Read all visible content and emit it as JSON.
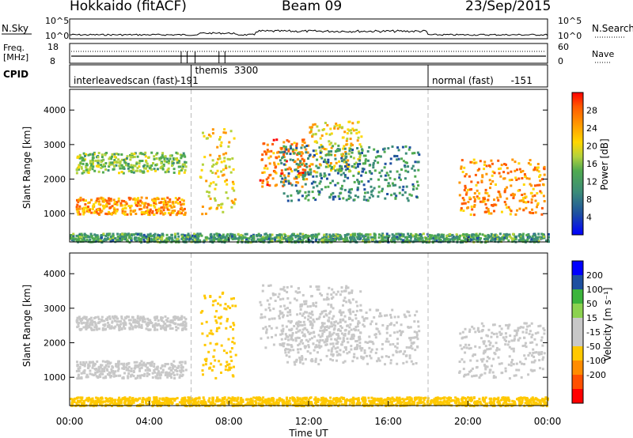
{
  "header": {
    "radar": "Hokkaido (fitACF)",
    "beam": "Beam 09",
    "date": "23/Sep/2015"
  },
  "noise_panel": {
    "left_label": "N.Sky",
    "right_label": "N.Search",
    "ticks": [
      "10^5",
      "10^0"
    ]
  },
  "freq_panel": {
    "left_label_top": "Freq.",
    "left_label_bottom": "[MHz]",
    "right_label": "Nave",
    "left_ticks": [
      "18",
      "8"
    ],
    "right_ticks": [
      "60",
      "0"
    ]
  },
  "cpid_panel": {
    "label": "CPID",
    "modes": [
      {
        "name": "interleavedscan (fast)",
        "id": "-191",
        "start_hour": 0,
        "end_hour": 6.1
      },
      {
        "name": "themis",
        "id": "3300",
        "start_hour": 6.1,
        "end_hour": 8.3
      },
      {
        "name": "normal (fast)",
        "id": "-151",
        "start_hour": 18.0,
        "end_hour": 24
      }
    ]
  },
  "colors": {
    "power_scale": [
      "#0000ff",
      "#1e50a0",
      "#3c8c78",
      "#50aa50",
      "#b4d23c",
      "#ffd700",
      "#ff9600",
      "#ff5a00",
      "#ff0000"
    ],
    "velocity_scale": [
      "#0000ff",
      "#1e50a0",
      "#3cb43c",
      "#8cd250",
      "#c8c8c8",
      "#c8c8c8",
      "#ffc800",
      "#ff8c00",
      "#ff5000",
      "#ff0000"
    ]
  },
  "chart_data": [
    {
      "type": "heatmap",
      "name": "power",
      "ylabel": "Slant Range [km]",
      "xlim": [
        0,
        24
      ],
      "ylim": [
        180,
        4600
      ],
      "yticks": [
        1000,
        2000,
        3000,
        4000
      ],
      "colorbar": {
        "label": "Power [dB]",
        "range": [
          0,
          32
        ],
        "ticks": [
          4,
          8,
          12,
          16,
          20,
          24,
          28
        ]
      },
      "echo_bands": [
        {
          "t0": 0.3,
          "t1": 5.8,
          "r0": 1000,
          "r1": 1500,
          "value": 24
        },
        {
          "t0": 0.3,
          "t1": 5.8,
          "r0": 2200,
          "r1": 2800,
          "value": 14
        },
        {
          "t0": 6.5,
          "t1": 8.3,
          "r0": 1000,
          "r1": 3500,
          "value": 20
        },
        {
          "t0": 9.5,
          "t1": 12.0,
          "r0": 1800,
          "r1": 3200,
          "value": 26
        },
        {
          "t0": 12.0,
          "t1": 14.6,
          "r0": 2200,
          "r1": 3700,
          "value": 20
        },
        {
          "t0": 10.5,
          "t1": 17.5,
          "r0": 1400,
          "r1": 3000,
          "value": 9
        },
        {
          "t0": 19.5,
          "t1": 23.8,
          "r0": 1000,
          "r1": 2600,
          "value": 25
        },
        {
          "t0": 0,
          "t1": 24,
          "r0": 200,
          "r1": 450,
          "value": 10
        }
      ]
    },
    {
      "type": "heatmap",
      "name": "velocity",
      "ylabel": "Slant Range [km]",
      "xlabel": "Time UT",
      "xlim": [
        0,
        24
      ],
      "ylim": [
        180,
        4600
      ],
      "yticks": [
        1000,
        2000,
        3000,
        4000
      ],
      "xticks": [
        "00:00",
        "04:00",
        "08:00",
        "12:00",
        "16:00",
        "20:00",
        "00:00"
      ],
      "colorbar": {
        "label": "Velocity [m s⁻¹]",
        "ticks": [
          "200",
          "100",
          "50",
          "15",
          "-15",
          "-50",
          "-100",
          "-200"
        ]
      },
      "echo_bands": [
        {
          "t0": 0.3,
          "t1": 5.8,
          "r0": 1000,
          "r1": 1500,
          "value": 0
        },
        {
          "t0": 0.3,
          "t1": 5.8,
          "r0": 2400,
          "r1": 2800,
          "value": 0
        },
        {
          "t0": 6.5,
          "t1": 8.3,
          "r0": 1000,
          "r1": 3500,
          "value": -40
        },
        {
          "t0": 9.5,
          "t1": 14.6,
          "r0": 1800,
          "r1": 3700,
          "value": 0
        },
        {
          "t0": 10.5,
          "t1": 17.5,
          "r0": 1400,
          "r1": 3000,
          "value": 0
        },
        {
          "t0": 19.5,
          "t1": 23.8,
          "r0": 1000,
          "r1": 2600,
          "value": 0
        },
        {
          "t0": 0,
          "t1": 24,
          "r0": 200,
          "r1": 450,
          "value": -30
        }
      ]
    }
  ]
}
